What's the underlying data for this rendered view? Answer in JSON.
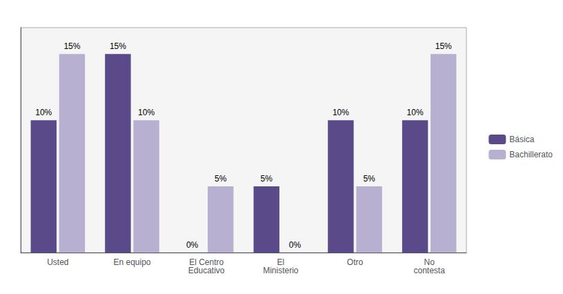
{
  "chart_data": {
    "type": "bar",
    "categories": [
      "Usted",
      "En equipo",
      "El Centro\nEducativo",
      "El\nMinisterio",
      "Otro",
      "No\ncontesta"
    ],
    "series": [
      {
        "name": "Básica",
        "color": "#5b4a8a",
        "values": [
          10,
          15,
          0,
          5,
          10,
          10
        ],
        "value_labels": [
          "10%",
          "15%",
          "0%",
          "5%",
          "10%",
          "10%"
        ]
      },
      {
        "name": "Bachillerato",
        "color": "#b8b0d0",
        "values": [
          15,
          10,
          5,
          0,
          5,
          15
        ],
        "value_labels": [
          "15%",
          "10%",
          "5%",
          "0%",
          "5%",
          "15%"
        ]
      }
    ],
    "ylim": [
      0,
      17
    ],
    "yticks": [],
    "grid": false,
    "legend": "right",
    "data_labels": true,
    "tick_labels": "x"
  }
}
